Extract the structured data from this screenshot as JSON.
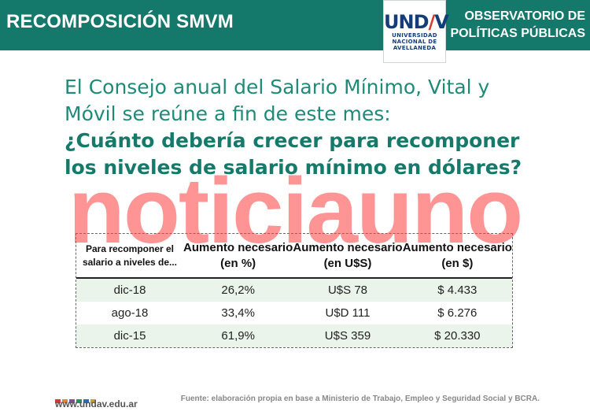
{
  "header": {
    "title": "RECOMPOSICIÓN SMVM",
    "right_line1": "OBSERVATORIO DE",
    "right_line2": "POLÍTICAS PÚBLICAS",
    "logo": {
      "mark": "UNDAV",
      "line1": "UNIVERSIDAD",
      "line2": "NACIONAL DE",
      "line3": "AVELLANEDA",
      "colors": {
        "primary": "#143c78",
        "accent": "#d63a2f"
      }
    },
    "background_color": "#14786a"
  },
  "intro": {
    "line1": "El Consejo anual del Salario Mínimo, Vital y",
    "line2": "Móvil se reúne a fin de este mes:",
    "question1": "¿Cuánto debería crecer para recomponer",
    "question2": "los niveles de salario mínimo en dólares?"
  },
  "watermark": "noticiauno",
  "table": {
    "headers": [
      {
        "line1": "Para recomponer el",
        "line2": "salario a niveles de..."
      },
      {
        "line1": "Aumento necesario",
        "line2": "(en %)"
      },
      {
        "line1": "Aumento necesario",
        "line2": "(en U$S)"
      },
      {
        "line1": "Aumento necesario",
        "line2": "(en $)"
      }
    ],
    "rows": [
      [
        "dic-18",
        "26,2%",
        "U$S 78",
        "$ 4.433"
      ],
      [
        "ago-18",
        "33,4%",
        "U$D 111",
        "$ 6.276"
      ],
      [
        "dic-15",
        "61,9%",
        "U$S 359",
        "$ 20.330"
      ]
    ]
  },
  "footer": {
    "url": "www.undav.edu.ar",
    "source": "Fuente: elaboración propia en base a Ministerio de Trabajo, Empleo y Seguridad Social y BCRA.",
    "square_colors": [
      "#d63a2f",
      "#e28a2b",
      "#7a4fa0",
      "#2a8f5a",
      "#2a6fb5",
      "#c9a21f"
    ]
  }
}
